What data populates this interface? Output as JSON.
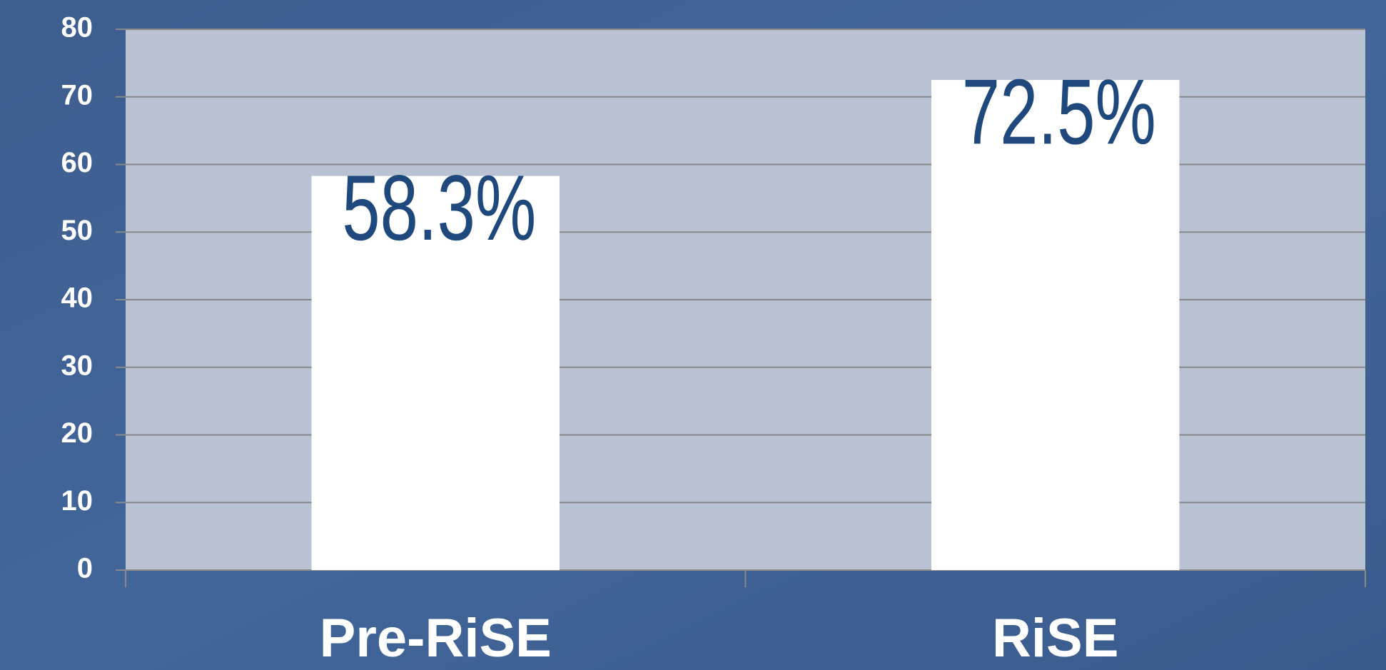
{
  "chart_data": {
    "type": "bar",
    "categories": [
      "Pre-RiSE",
      "RiSE"
    ],
    "values": [
      58.3,
      72.5
    ],
    "value_labels": [
      "58.3%",
      "72.5%"
    ],
    "color": "#ffffff",
    "label_color": "#1f497d",
    "ylim": [
      0,
      80
    ],
    "yticks": [
      0,
      10,
      20,
      30,
      40,
      50,
      60,
      70,
      80
    ],
    "grid": true
  }
}
